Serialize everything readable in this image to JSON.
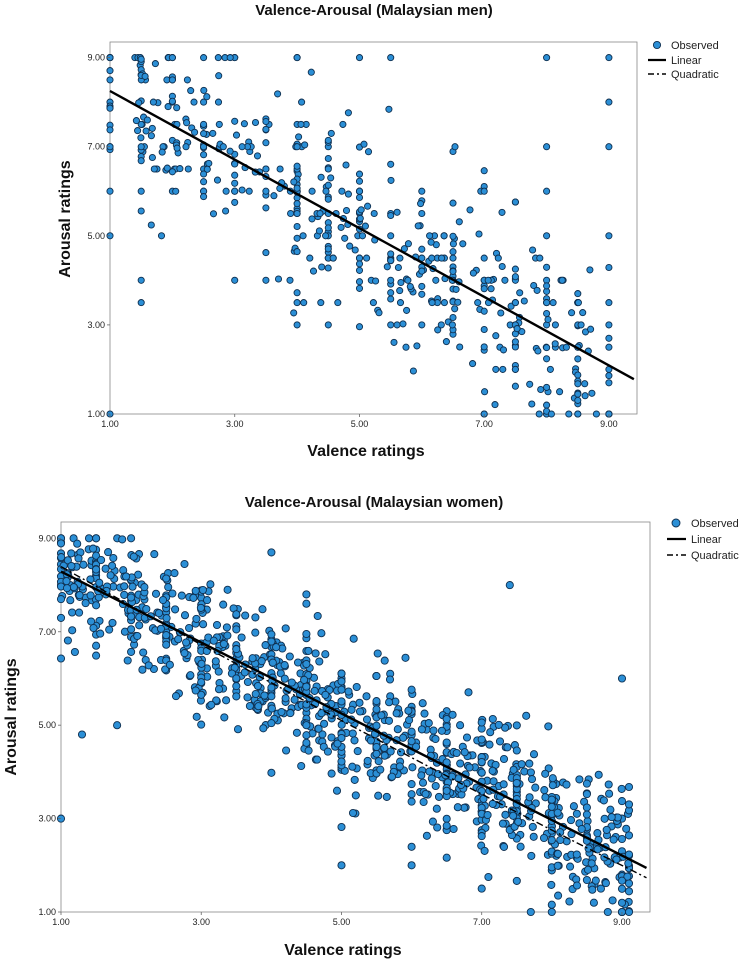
{
  "chart_data": [
    {
      "type": "scatter",
      "title": "Valence-Arousal (Malaysian men)",
      "xlabel": "Valence ratings",
      "ylabel": "Arousal ratings",
      "xlim": [
        1.0,
        9.45
      ],
      "ylim": [
        1.0,
        9.35
      ],
      "xticks": [
        "1.00",
        "3.00",
        "5.00",
        "7.00",
        "9.00"
      ],
      "yticks": [
        "1.00",
        "3.00",
        "5.00",
        "7.00",
        "9.00"
      ],
      "grid": false,
      "legend_position": "top-right",
      "legend": [
        "Observed",
        "Linear",
        "Quadratic"
      ],
      "point_color": "#2b8fd6",
      "series": [
        {
          "name": "Observed",
          "mode": "markers",
          "n_points": 600
        },
        {
          "name": "Linear",
          "mode": "line",
          "intercept": 9.02,
          "slope": -0.77
        },
        {
          "name": "Quadratic",
          "mode": "dashdot",
          "intercept": 9.02,
          "slope": -0.77,
          "quadratic": 0.0
        }
      ]
    },
    {
      "type": "scatter",
      "title": "Valence-Arousal (Malaysian women)",
      "xlabel": "Valence ratings",
      "ylabel": "Arousal ratings",
      "xlim": [
        1.0,
        9.4
      ],
      "ylim": [
        1.0,
        9.35
      ],
      "xticks": [
        "1.00",
        "3.00",
        "5.00",
        "7.00",
        "9.00"
      ],
      "yticks": [
        "1.00",
        "3.00",
        "5.00",
        "7.00",
        "9.00"
      ],
      "grid": false,
      "legend_position": "top-right",
      "legend": [
        "Observed",
        "Linear",
        "Quadratic"
      ],
      "point_color": "#2b8fd6",
      "series": [
        {
          "name": "Observed",
          "mode": "markers",
          "n_points": 1100
        },
        {
          "name": "Linear",
          "mode": "line",
          "intercept": 9.05,
          "slope": -0.76
        },
        {
          "name": "Quadratic",
          "mode": "dashdot",
          "intercept": 9.25,
          "slope": -0.86,
          "quadratic": 0.006
        }
      ]
    }
  ]
}
